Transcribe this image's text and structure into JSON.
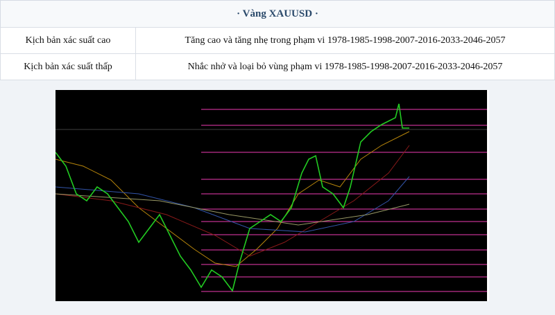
{
  "header": {
    "title": "· Vàng XAUUSD ·"
  },
  "table": {
    "rows": [
      [
        "Kịch bản xác suất cao",
        "Tăng cao và tăng nhẹ trong phạm vi 1978-1985-1998-2007-2016-2033-2046-2057"
      ],
      [
        "Kịch bản xác suất thấp",
        "Nhắc nhở và loại bỏ vùng phạm vi 1978-1985-1998-2007-2016-2033-2046-2057"
      ]
    ]
  }
}
